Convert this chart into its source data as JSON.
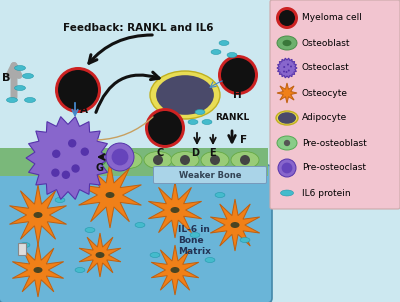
{
  "bg_color": "#cce8f0",
  "legend_bg": "#f2c5d0",
  "bone_bg": "#6ab5d8",
  "green_strip_color": "#7ab87a",
  "green_cell_color": "#a0d070",
  "osteocyte_color": "#f08018",
  "osteoclast_color": "#7755bb",
  "myeloma_ring": "#cc2222",
  "myeloma_core": "#111111",
  "adipocyte_outer": "#f0e060",
  "adipocyte_inner": "#4a4a6a",
  "il6_color": "#44bbcc",
  "feedback_text": "Feedback: RANKL and IL6",
  "il6_matrix_text": "IL-6 in\nBone\nMatrix",
  "weaker_bone_text": "Weaker Bone",
  "rankl_text": "RANKL",
  "legend_items": [
    "Myeloma cell",
    "Osteoblast",
    "Osteoclast",
    "Osteocyte",
    "Adipocyte",
    "Pre-osteoblast",
    "Pre-osteoclast",
    "IL6 protein"
  ]
}
